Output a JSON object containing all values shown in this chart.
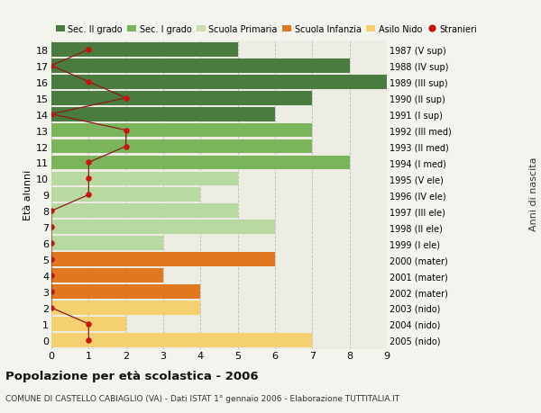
{
  "ages": [
    18,
    17,
    16,
    15,
    14,
    13,
    12,
    11,
    10,
    9,
    8,
    7,
    6,
    5,
    4,
    3,
    2,
    1,
    0
  ],
  "right_labels": [
    "1987 (V sup)",
    "1988 (IV sup)",
    "1989 (III sup)",
    "1990 (II sup)",
    "1991 (I sup)",
    "1992 (III med)",
    "1993 (II med)",
    "1994 (I med)",
    "1995 (V ele)",
    "1996 (IV ele)",
    "1997 (III ele)",
    "1998 (II ele)",
    "1999 (I ele)",
    "2000 (mater)",
    "2001 (mater)",
    "2002 (mater)",
    "2003 (nido)",
    "2004 (nido)",
    "2005 (nido)"
  ],
  "bar_values": [
    5,
    8,
    9,
    7,
    6,
    7,
    7,
    8,
    5,
    4,
    5,
    6,
    3,
    6,
    3,
    4,
    4,
    2,
    7
  ],
  "bar_colors": [
    "#4a7c3f",
    "#4a7c3f",
    "#4a7c3f",
    "#4a7c3f",
    "#4a7c3f",
    "#7ab55c",
    "#7ab55c",
    "#7ab55c",
    "#b8d9a0",
    "#b8d9a0",
    "#b8d9a0",
    "#b8d9a0",
    "#b8d9a0",
    "#e07820",
    "#e07820",
    "#e07820",
    "#f5d070",
    "#f5d070",
    "#f5d070"
  ],
  "stranieri_x": [
    1,
    0,
    1,
    2,
    0,
    2,
    2,
    1,
    1,
    1,
    0,
    0,
    0,
    0,
    0,
    0,
    0,
    1,
    1
  ],
  "legend_labels": [
    "Sec. II grado",
    "Sec. I grado",
    "Scuola Primaria",
    "Scuola Infanzia",
    "Asilo Nido",
    "Stranieri"
  ],
  "legend_colors": [
    "#4a7c3f",
    "#7ab55c",
    "#c8e0b0",
    "#e07820",
    "#f5d070",
    "#cc1111"
  ],
  "title": "Popolazione per età scolastica - 2006",
  "subtitle": "COMUNE DI CASTELLO CABIAGLIO (VA) - Dati ISTAT 1° gennaio 2006 - Elaborazione TUTTITALIA.IT",
  "ylabel_left": "Età alunni",
  "ylabel_right": "Anni di nascita",
  "xlim": [
    0,
    9
  ],
  "bg_color": "#f4f4ee",
  "plot_bg_color": "#ededE4",
  "grid_color": "#bbbbbb"
}
